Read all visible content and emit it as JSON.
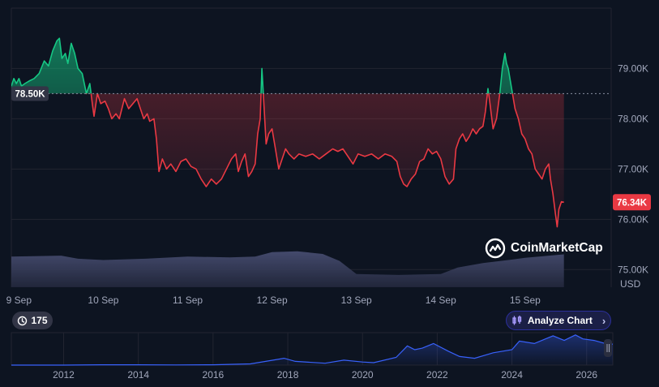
{
  "chart_data": {
    "type": "area",
    "title": "",
    "y_unit": "USD",
    "ylim": [
      74650,
      80200
    ],
    "baseline_value": 78500,
    "baseline_label": "78.50K",
    "last_value": 76340,
    "last_label": "76.34K",
    "y_ticks": [
      {
        "value": 75000,
        "label": "75.00K"
      },
      {
        "value": 76000,
        "label": "76.00K"
      },
      {
        "value": 77000,
        "label": "77.00K"
      },
      {
        "value": 78000,
        "label": "78.00K"
      },
      {
        "value": 79000,
        "label": "79.00K"
      }
    ],
    "x_ticks": [
      {
        "day": 0,
        "label": "9 Sep"
      },
      {
        "day": 1,
        "label": "10 Sep"
      },
      {
        "day": 2,
        "label": "11 Sep"
      },
      {
        "day": 3,
        "label": "12 Sep"
      },
      {
        "day": 4,
        "label": "13 Sep"
      },
      {
        "day": 5,
        "label": "14 Sep"
      },
      {
        "day": 6,
        "label": "15 Sep"
      }
    ],
    "x_range_days": [
      -0.09,
      7.02
    ],
    "above_color": "#16c784",
    "below_color": "#ea3943",
    "price_series": [
      [
        -0.09,
        78650
      ],
      [
        -0.06,
        78800
      ],
      [
        -0.03,
        78700
      ],
      [
        0.0,
        78800
      ],
      [
        0.03,
        78650
      ],
      [
        0.07,
        78700
      ],
      [
        0.12,
        78750
      ],
      [
        0.18,
        78800
      ],
      [
        0.24,
        78900
      ],
      [
        0.3,
        79150
      ],
      [
        0.35,
        79050
      ],
      [
        0.4,
        79350
      ],
      [
        0.45,
        79550
      ],
      [
        0.48,
        79600
      ],
      [
        0.51,
        79200
      ],
      [
        0.55,
        79300
      ],
      [
        0.58,
        79100
      ],
      [
        0.62,
        79500
      ],
      [
        0.66,
        79300
      ],
      [
        0.7,
        79000
      ],
      [
        0.75,
        78900
      ],
      [
        0.8,
        78500
      ],
      [
        0.84,
        78700
      ],
      [
        0.87,
        78300
      ],
      [
        0.89,
        78050
      ],
      [
        0.93,
        78500
      ],
      [
        0.97,
        78300
      ],
      [
        1.02,
        78350
      ],
      [
        1.06,
        78200
      ],
      [
        1.1,
        78000
      ],
      [
        1.15,
        78100
      ],
      [
        1.19,
        78000
      ],
      [
        1.25,
        78400
      ],
      [
        1.3,
        78200
      ],
      [
        1.35,
        78300
      ],
      [
        1.4,
        78400
      ],
      [
        1.44,
        78200
      ],
      [
        1.48,
        78000
      ],
      [
        1.52,
        78100
      ],
      [
        1.55,
        77950
      ],
      [
        1.6,
        78000
      ],
      [
        1.63,
        77600
      ],
      [
        1.66,
        76950
      ],
      [
        1.7,
        77200
      ],
      [
        1.75,
        77000
      ],
      [
        1.8,
        77100
      ],
      [
        1.86,
        76950
      ],
      [
        1.92,
        77150
      ],
      [
        1.98,
        77200
      ],
      [
        2.04,
        77050
      ],
      [
        2.1,
        77000
      ],
      [
        2.16,
        76800
      ],
      [
        2.22,
        76650
      ],
      [
        2.28,
        76800
      ],
      [
        2.34,
        76700
      ],
      [
        2.4,
        76800
      ],
      [
        2.46,
        77000
      ],
      [
        2.52,
        77200
      ],
      [
        2.57,
        77300
      ],
      [
        2.6,
        76950
      ],
      [
        2.64,
        77150
      ],
      [
        2.68,
        77300
      ],
      [
        2.72,
        76850
      ],
      [
        2.76,
        76950
      ],
      [
        2.8,
        77100
      ],
      [
        2.83,
        77700
      ],
      [
        2.86,
        78000
      ],
      [
        2.88,
        79000
      ],
      [
        2.9,
        78400
      ],
      [
        2.93,
        77500
      ],
      [
        2.96,
        77700
      ],
      [
        3.0,
        77800
      ],
      [
        3.04,
        77400
      ],
      [
        3.08,
        77000
      ],
      [
        3.12,
        77200
      ],
      [
        3.16,
        77400
      ],
      [
        3.2,
        77300
      ],
      [
        3.26,
        77200
      ],
      [
        3.32,
        77300
      ],
      [
        3.4,
        77250
      ],
      [
        3.48,
        77300
      ],
      [
        3.56,
        77200
      ],
      [
        3.64,
        77300
      ],
      [
        3.72,
        77400
      ],
      [
        3.78,
        77350
      ],
      [
        3.84,
        77400
      ],
      [
        3.9,
        77250
      ],
      [
        3.96,
        77100
      ],
      [
        4.02,
        77300
      ],
      [
        4.1,
        77250
      ],
      [
        4.18,
        77300
      ],
      [
        4.26,
        77200
      ],
      [
        4.34,
        77300
      ],
      [
        4.42,
        77250
      ],
      [
        4.48,
        77150
      ],
      [
        4.52,
        76850
      ],
      [
        4.56,
        76700
      ],
      [
        4.6,
        76650
      ],
      [
        4.65,
        76800
      ],
      [
        4.7,
        76900
      ],
      [
        4.75,
        77150
      ],
      [
        4.8,
        77200
      ],
      [
        4.85,
        77400
      ],
      [
        4.9,
        77300
      ],
      [
        4.95,
        77350
      ],
      [
        5.0,
        77200
      ],
      [
        5.05,
        76850
      ],
      [
        5.1,
        76700
      ],
      [
        5.15,
        76800
      ],
      [
        5.18,
        77400
      ],
      [
        5.22,
        77600
      ],
      [
        5.26,
        77700
      ],
      [
        5.3,
        77550
      ],
      [
        5.34,
        77650
      ],
      [
        5.38,
        77800
      ],
      [
        5.42,
        77700
      ],
      [
        5.46,
        77800
      ],
      [
        5.5,
        77850
      ],
      [
        5.53,
        78150
      ],
      [
        5.56,
        78600
      ],
      [
        5.58,
        78350
      ],
      [
        5.62,
        77800
      ],
      [
        5.66,
        78000
      ],
      [
        5.7,
        78500
      ],
      [
        5.73,
        79000
      ],
      [
        5.76,
        79300
      ],
      [
        5.78,
        79100
      ],
      [
        5.8,
        79000
      ],
      [
        5.84,
        78600
      ],
      [
        5.88,
        78200
      ],
      [
        5.92,
        78000
      ],
      [
        5.96,
        77700
      ],
      [
        6.0,
        77600
      ],
      [
        6.04,
        77400
      ],
      [
        6.08,
        77300
      ],
      [
        6.12,
        77000
      ],
      [
        6.16,
        76900
      ],
      [
        6.2,
        76800
      ],
      [
        6.24,
        77000
      ],
      [
        6.28,
        77100
      ],
      [
        6.3,
        76800
      ],
      [
        6.33,
        76500
      ],
      [
        6.36,
        76100
      ],
      [
        6.38,
        75850
      ],
      [
        6.4,
        76200
      ],
      [
        6.43,
        76350
      ],
      [
        6.46,
        76340
      ]
    ],
    "volume_note": "area under price pane",
    "volume_series": [
      [
        -0.09,
        0.7
      ],
      [
        0.5,
        0.72
      ],
      [
        0.7,
        0.65
      ],
      [
        1.0,
        0.62
      ],
      [
        1.5,
        0.65
      ],
      [
        2.0,
        0.7
      ],
      [
        2.5,
        0.68
      ],
      [
        2.8,
        0.7
      ],
      [
        3.0,
        0.8
      ],
      [
        3.3,
        0.82
      ],
      [
        3.6,
        0.76
      ],
      [
        3.8,
        0.6
      ],
      [
        4.0,
        0.3
      ],
      [
        4.5,
        0.28
      ],
      [
        5.0,
        0.3
      ],
      [
        5.2,
        0.45
      ],
      [
        5.5,
        0.55
      ],
      [
        5.8,
        0.62
      ],
      [
        6.0,
        0.67
      ],
      [
        6.46,
        0.75
      ]
    ],
    "overview": {
      "x_ticks": [
        "2012",
        "2014",
        "2016",
        "2018",
        "2020",
        "2022",
        "2024",
        "2026"
      ],
      "series": [
        [
          2010.6,
          0.0
        ],
        [
          2012.0,
          0.0
        ],
        [
          2013.0,
          0.01
        ],
        [
          2014.0,
          0.01
        ],
        [
          2015.0,
          0.005
        ],
        [
          2016.0,
          0.01
        ],
        [
          2017.0,
          0.04
        ],
        [
          2017.9,
          0.22
        ],
        [
          2018.2,
          0.12
        ],
        [
          2019.0,
          0.06
        ],
        [
          2019.5,
          0.16
        ],
        [
          2020.0,
          0.1
        ],
        [
          2020.3,
          0.08
        ],
        [
          2020.9,
          0.25
        ],
        [
          2021.2,
          0.62
        ],
        [
          2021.4,
          0.5
        ],
        [
          2021.6,
          0.55
        ],
        [
          2021.9,
          0.7
        ],
        [
          2022.3,
          0.45
        ],
        [
          2022.6,
          0.28
        ],
        [
          2023.0,
          0.22
        ],
        [
          2023.5,
          0.4
        ],
        [
          2024.0,
          0.5
        ],
        [
          2024.2,
          0.78
        ],
        [
          2024.6,
          0.7
        ],
        [
          2024.9,
          0.85
        ],
        [
          2025.1,
          0.95
        ],
        [
          2025.4,
          0.8
        ],
        [
          2025.7,
          0.98
        ],
        [
          2025.9,
          0.85
        ],
        [
          2026.2,
          0.8
        ],
        [
          2026.5,
          0.7
        ],
        [
          2026.7,
          0.68
        ]
      ]
    }
  },
  "ui": {
    "history_count": "175",
    "analyze_label": "Analyze Chart",
    "brand": "CoinMarketCap",
    "currency": "USD"
  },
  "colors": {
    "background": "#0d1421",
    "grid": "#222531",
    "up": "#16c784",
    "down": "#ea3943",
    "badge_grey": "#323546",
    "accent": "#3861fb"
  }
}
